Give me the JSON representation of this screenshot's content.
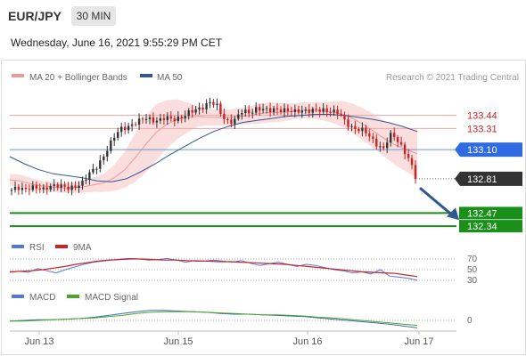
{
  "header": {
    "pair": "EUR/JPY",
    "timeframe": "30 MIN",
    "timestamp": "Wednesday, June 16, 2021 9:55:29 PM CET"
  },
  "legend": {
    "bollinger_label": "MA 20 + Bollinger Bands",
    "ma50_label": "MA 50",
    "credit": "Research © 2021 Trading Central"
  },
  "colors": {
    "up": "#333333",
    "down": "#cc2222",
    "bollinger": "#ee9999",
    "ma50": "#335599",
    "resistance": "#e8a8a8",
    "pivot": "#6699dd",
    "support": "#1a8f1a",
    "last_price": "#333333",
    "pivot_tag": "#2f6be0",
    "support_tag": "#1a8f1a",
    "rsi": "#5577dd",
    "rsi_signal": "#cc2222",
    "macd": "#4466bb",
    "macd_signal": "#44aa22",
    "arrow": "#2e5a8e"
  },
  "chart_data": {
    "type": "candlestick",
    "instrument": "EUR/JPY",
    "interval": "30 MIN",
    "x_ticks": [
      "Jun 13",
      "Jun 15",
      "Jun 16",
      "Jun 17"
    ],
    "price_levels": [
      {
        "label": "133.44",
        "value": 133.44,
        "kind": "resistance"
      },
      {
        "label": "133.31",
        "value": 133.31,
        "kind": "resistance"
      },
      {
        "label": "133.10",
        "value": 133.1,
        "kind": "pivot"
      },
      {
        "label": "132.81",
        "value": 132.81,
        "kind": "last"
      },
      {
        "label": "132.47",
        "value": 132.47,
        "kind": "support"
      },
      {
        "label": "132.34",
        "value": 132.34,
        "kind": "support"
      }
    ],
    "price_path": [
      132.7,
      132.71,
      132.7,
      132.74,
      132.72,
      132.69,
      132.74,
      132.76,
      132.73,
      132.7,
      132.74,
      132.78,
      132.85,
      132.9,
      133.0,
      133.12,
      133.22,
      133.3,
      133.33,
      133.36,
      133.38,
      133.41,
      133.4,
      133.39,
      133.41,
      133.4,
      133.42,
      133.44,
      133.47,
      133.5,
      133.54,
      133.57,
      133.53,
      133.42,
      133.38,
      133.4,
      133.48,
      133.47,
      133.51,
      133.5,
      133.48,
      133.51,
      133.5,
      133.48,
      133.47,
      133.5,
      133.49,
      133.48,
      133.49,
      133.5,
      133.48,
      133.46,
      133.38,
      133.33,
      133.3,
      133.28,
      133.22,
      133.16,
      133.1,
      133.24,
      133.22,
      133.12,
      133.0,
      132.82
    ],
    "bollinger": {
      "middle": [
        132.8,
        132.79,
        132.76,
        132.74,
        132.73,
        132.72,
        132.72,
        132.73,
        132.75,
        132.77,
        132.82,
        132.9,
        133.02,
        133.15,
        133.27,
        133.35,
        133.4,
        133.42,
        133.43,
        133.42,
        133.42,
        133.42,
        133.43,
        133.44,
        133.46,
        133.47,
        133.47,
        133.48,
        133.49,
        133.49,
        133.48,
        133.47,
        133.45,
        133.4,
        133.34,
        133.27,
        133.2,
        133.14,
        133.1,
        133.06
      ],
      "width": [
        0.06,
        0.06,
        0.06,
        0.05,
        0.05,
        0.05,
        0.05,
        0.06,
        0.07,
        0.09,
        0.13,
        0.18,
        0.24,
        0.28,
        0.28,
        0.24,
        0.2,
        0.15,
        0.1,
        0.08,
        0.08,
        0.08,
        0.08,
        0.09,
        0.1,
        0.1,
        0.09,
        0.08,
        0.08,
        0.08,
        0.09,
        0.11,
        0.13,
        0.15,
        0.16,
        0.17,
        0.18,
        0.2,
        0.22,
        0.25
      ]
    },
    "ma50": [
      133.03,
      132.96,
      132.9,
      132.86,
      132.84,
      132.82,
      132.79,
      132.78,
      132.81,
      132.88,
      132.96,
      133.05,
      133.13,
      133.21,
      133.28,
      133.33,
      133.37,
      133.39,
      133.41,
      133.43,
      133.44,
      133.45,
      133.45,
      133.44,
      133.42,
      133.4,
      133.37,
      133.33,
      133.28
    ],
    "rsi": {
      "label": "RSI",
      "signal_label": "9MA",
      "levels": [
        "70",
        "50",
        "30"
      ],
      "values": [
        45,
        47,
        45,
        52,
        48,
        44,
        50,
        55,
        60,
        64,
        66,
        68,
        70,
        71,
        70,
        68,
        69,
        71,
        68,
        64,
        67,
        66,
        68,
        66,
        64,
        67,
        62,
        58,
        61,
        64,
        60,
        56,
        60,
        58,
        54,
        50,
        48,
        44,
        46,
        42,
        50,
        38,
        36,
        34,
        30
      ],
      "signal": [
        46,
        47,
        48,
        50,
        53,
        56,
        60,
        63,
        66,
        68,
        69,
        70,
        70,
        69,
        68,
        68,
        67,
        66,
        66,
        65,
        65,
        64,
        63,
        62,
        61,
        60,
        58,
        56,
        54,
        52,
        50,
        48,
        46,
        45,
        44,
        43,
        40,
        37
      ]
    },
    "macd": {
      "label": "MACD",
      "signal_label": "MACD Signal",
      "zero_label": "0",
      "values": [
        -0.01,
        0.0,
        0.01,
        0.01,
        0.02,
        0.03,
        0.05,
        0.08,
        0.11,
        0.14,
        0.16,
        0.16,
        0.15,
        0.14,
        0.13,
        0.11,
        0.1,
        0.1,
        0.09,
        0.08,
        0.07,
        0.06,
        0.04,
        0.02,
        0.0,
        -0.02,
        -0.04,
        -0.06,
        -0.09,
        -0.12
      ],
      "signal": [
        -0.01,
        -0.01,
        0.0,
        0.01,
        0.02,
        0.03,
        0.04,
        0.06,
        0.08,
        0.11,
        0.13,
        0.14,
        0.14,
        0.14,
        0.13,
        0.12,
        0.11,
        0.1,
        0.09,
        0.09,
        0.08,
        0.07,
        0.05,
        0.04,
        0.02,
        0.0,
        -0.02,
        -0.04,
        -0.06,
        -0.08
      ]
    },
    "forecast_arrow": {
      "from": 132.72,
      "to": 132.4
    }
  }
}
